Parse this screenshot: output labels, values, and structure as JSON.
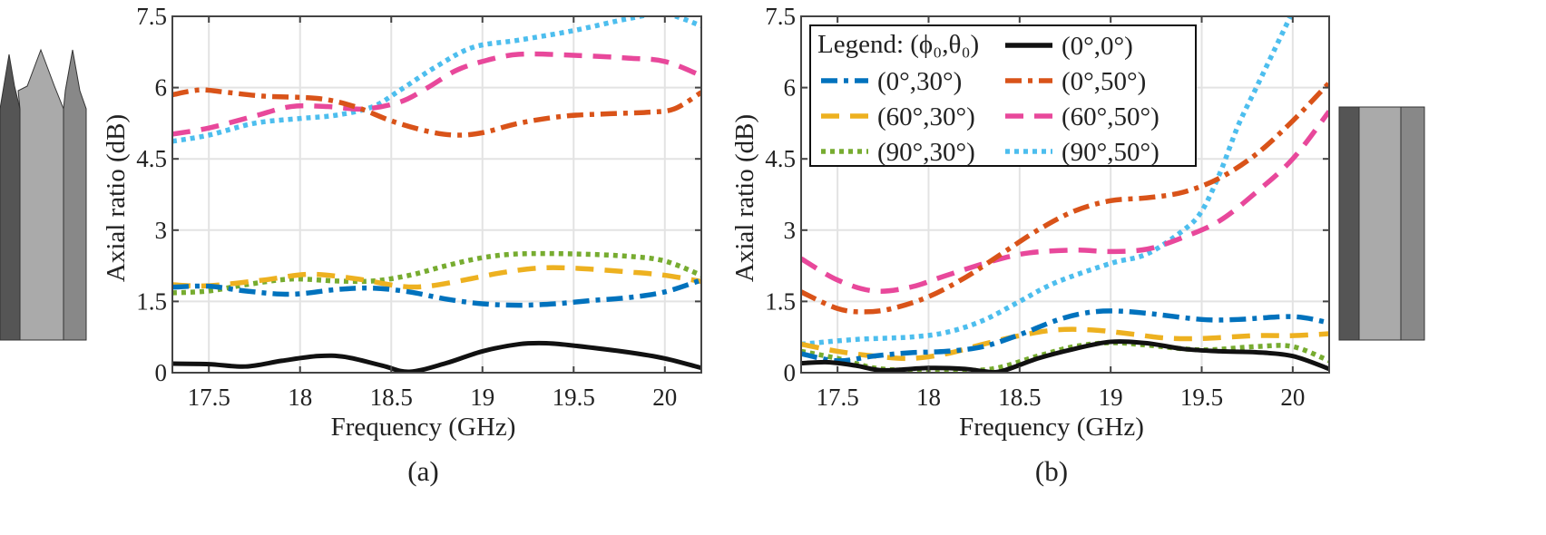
{
  "legend": {
    "title": "Legend: (ϕ₀,θ₀)",
    "entries": [
      {
        "name": "(0°,0°)",
        "color": "#111111",
        "style": "solid"
      },
      {
        "name": "(0°,30°)",
        "color": "#0072BD",
        "style": "dashdot"
      },
      {
        "name": "(0°,50°)",
        "color": "#D95319",
        "style": "dashdot"
      },
      {
        "name": "(60°,30°)",
        "color": "#EDB120",
        "style": "dashed"
      },
      {
        "name": "(60°,50°)",
        "color": "#E8489B",
        "style": "dashed"
      },
      {
        "name": "(90°,30°)",
        "color": "#77AC30",
        "style": "dotted"
      },
      {
        "name": "(90°,50°)",
        "color": "#4DBEEE",
        "style": "dotted"
      }
    ]
  },
  "chart_data": [
    {
      "type": "line",
      "caption": "(a)",
      "xlabel": "Frequency (GHz)",
      "ylabel": "Axial ratio (dB)",
      "xlim": [
        17.3,
        20.2
      ],
      "ylim": [
        0,
        7.5
      ],
      "xticks": [
        "17.5",
        "18",
        "18.5",
        "19",
        "19.5",
        "20"
      ],
      "yticks": [
        "0",
        "1.5",
        "3",
        "4.5",
        "6",
        "7.5"
      ],
      "grid": true,
      "series": [
        {
          "name": "(0°,0°)",
          "x": [
            17.3,
            17.5,
            17.7,
            17.9,
            18.1,
            18.25,
            18.45,
            18.6,
            18.8,
            19.0,
            19.2,
            19.35,
            19.5,
            19.8,
            20.0,
            20.2
          ],
          "y": [
            0.19,
            0.18,
            0.13,
            0.25,
            0.35,
            0.33,
            0.15,
            0.02,
            0.2,
            0.45,
            0.6,
            0.62,
            0.57,
            0.43,
            0.3,
            0.1
          ]
        },
        {
          "name": "(0°,30°)",
          "x": [
            17.3,
            17.5,
            17.7,
            17.95,
            18.2,
            18.4,
            18.6,
            18.8,
            19.0,
            19.2,
            19.4,
            19.6,
            19.8,
            20.0,
            20.2
          ],
          "y": [
            1.8,
            1.82,
            1.72,
            1.65,
            1.75,
            1.78,
            1.7,
            1.55,
            1.45,
            1.42,
            1.45,
            1.52,
            1.58,
            1.7,
            1.95
          ]
        },
        {
          "name": "(0°,50°)",
          "x": [
            17.3,
            17.45,
            17.6,
            17.8,
            18.1,
            18.3,
            18.5,
            18.7,
            18.85,
            19.0,
            19.2,
            19.45,
            19.7,
            19.9,
            20.05,
            20.2
          ],
          "y": [
            5.85,
            5.95,
            5.9,
            5.82,
            5.77,
            5.6,
            5.3,
            5.08,
            5.0,
            5.05,
            5.25,
            5.4,
            5.45,
            5.48,
            5.55,
            5.9
          ]
        },
        {
          "name": "(60°,30°)",
          "x": [
            17.3,
            17.5,
            17.8,
            18.05,
            18.3,
            18.55,
            18.7,
            18.9,
            19.1,
            19.3,
            19.5,
            19.8,
            20.0,
            20.2
          ],
          "y": [
            1.85,
            1.83,
            1.95,
            2.07,
            1.98,
            1.82,
            1.82,
            1.95,
            2.1,
            2.2,
            2.2,
            2.12,
            2.05,
            1.92
          ]
        },
        {
          "name": "(60°,50°)",
          "x": [
            17.3,
            17.5,
            17.75,
            17.95,
            18.15,
            18.35,
            18.55,
            18.7,
            18.85,
            19.0,
            19.2,
            19.5,
            19.8,
            20.0,
            20.2
          ],
          "y": [
            5.02,
            5.15,
            5.4,
            5.6,
            5.6,
            5.55,
            5.7,
            6.0,
            6.35,
            6.55,
            6.7,
            6.68,
            6.62,
            6.55,
            6.25
          ]
        },
        {
          "name": "(90°,30°)",
          "x": [
            17.3,
            17.5,
            17.7,
            17.95,
            18.2,
            18.4,
            18.6,
            18.8,
            19.0,
            19.2,
            19.5,
            19.8,
            20.0,
            20.2
          ],
          "y": [
            1.68,
            1.72,
            1.85,
            1.97,
            1.93,
            1.93,
            2.05,
            2.25,
            2.42,
            2.5,
            2.5,
            2.45,
            2.35,
            2.05
          ]
        },
        {
          "name": "(90°,50°)",
          "x": [
            17.3,
            17.5,
            17.75,
            18.0,
            18.2,
            18.4,
            18.55,
            18.75,
            18.95,
            19.2,
            19.5,
            19.8,
            20.0,
            20.2
          ],
          "y": [
            4.87,
            5.0,
            5.25,
            5.35,
            5.42,
            5.6,
            5.95,
            6.45,
            6.85,
            7.0,
            7.2,
            7.45,
            7.55,
            7.3
          ]
        }
      ]
    },
    {
      "type": "line",
      "caption": "(b)",
      "xlabel": "Frequency (GHz)",
      "ylabel": "Axial ratio (dB)",
      "xlim": [
        17.3,
        20.2
      ],
      "ylim": [
        0,
        7.5
      ],
      "xticks": [
        "17.5",
        "18",
        "18.5",
        "19",
        "19.5",
        "20"
      ],
      "yticks": [
        "0",
        "1.5",
        "3",
        "4.5",
        "6",
        "7.5"
      ],
      "grid": true,
      "legend_position": "top-left",
      "series": [
        {
          "name": "(0°,0°)",
          "x": [
            17.3,
            17.45,
            17.6,
            17.75,
            18.0,
            18.2,
            18.3,
            18.4,
            18.6,
            18.8,
            19.0,
            19.2,
            19.4,
            19.6,
            19.8,
            20.0,
            20.2
          ],
          "y": [
            0.2,
            0.22,
            0.15,
            0.05,
            0.1,
            0.08,
            0.03,
            0.03,
            0.3,
            0.5,
            0.65,
            0.62,
            0.5,
            0.45,
            0.43,
            0.35,
            0.08
          ]
        },
        {
          "name": "(0°,30°)",
          "x": [
            17.3,
            17.5,
            17.7,
            17.9,
            18.1,
            18.3,
            18.5,
            18.7,
            18.85,
            19.0,
            19.2,
            19.5,
            19.7,
            20.0,
            20.2
          ],
          "y": [
            0.4,
            0.25,
            0.35,
            0.42,
            0.45,
            0.55,
            0.8,
            1.1,
            1.25,
            1.3,
            1.25,
            1.12,
            1.12,
            1.18,
            1.05
          ]
        },
        {
          "name": "(0°,50°)",
          "x": [
            17.3,
            17.5,
            17.65,
            17.8,
            18.0,
            18.2,
            18.4,
            18.6,
            18.8,
            19.0,
            19.2,
            19.4,
            19.6,
            19.8,
            20.0,
            20.2
          ],
          "y": [
            1.7,
            1.35,
            1.28,
            1.35,
            1.6,
            2.0,
            2.5,
            3.0,
            3.4,
            3.62,
            3.68,
            3.8,
            4.1,
            4.6,
            5.3,
            6.1
          ]
        },
        {
          "name": "(60°,30°)",
          "x": [
            17.3,
            17.5,
            17.7,
            17.9,
            18.1,
            18.3,
            18.5,
            18.7,
            18.9,
            19.1,
            19.3,
            19.5,
            19.8,
            20.0,
            20.2
          ],
          "y": [
            0.6,
            0.45,
            0.35,
            0.3,
            0.4,
            0.6,
            0.78,
            0.9,
            0.9,
            0.82,
            0.73,
            0.72,
            0.78,
            0.78,
            0.82
          ]
        },
        {
          "name": "(60°,50°)",
          "x": [
            17.3,
            17.5,
            17.7,
            17.9,
            18.1,
            18.35,
            18.55,
            18.8,
            19.0,
            19.2,
            19.4,
            19.6,
            19.8,
            20.0,
            20.2
          ],
          "y": [
            2.4,
            1.95,
            1.72,
            1.8,
            2.05,
            2.35,
            2.52,
            2.58,
            2.55,
            2.6,
            2.85,
            3.2,
            3.8,
            4.5,
            5.5
          ]
        },
        {
          "name": "(90°,30°)",
          "x": [
            17.3,
            17.5,
            17.7,
            17.9,
            18.1,
            18.35,
            18.6,
            18.8,
            19.0,
            19.2,
            19.5,
            19.8,
            20.0,
            20.2
          ],
          "y": [
            0.45,
            0.3,
            0.1,
            0.05,
            0.05,
            0.08,
            0.35,
            0.55,
            0.63,
            0.58,
            0.48,
            0.55,
            0.55,
            0.25
          ]
        },
        {
          "name": "(90°,50°)",
          "x": [
            17.3,
            17.6,
            17.9,
            18.1,
            18.3,
            18.5,
            18.7,
            19.0,
            19.2,
            19.4,
            19.5,
            19.6,
            19.7,
            19.8,
            19.9,
            20.0
          ],
          "y": [
            0.6,
            0.7,
            0.75,
            0.85,
            1.1,
            1.5,
            1.9,
            2.3,
            2.5,
            3.0,
            3.4,
            4.2,
            5.2,
            6.0,
            6.8,
            7.6
          ]
        }
      ]
    }
  ]
}
